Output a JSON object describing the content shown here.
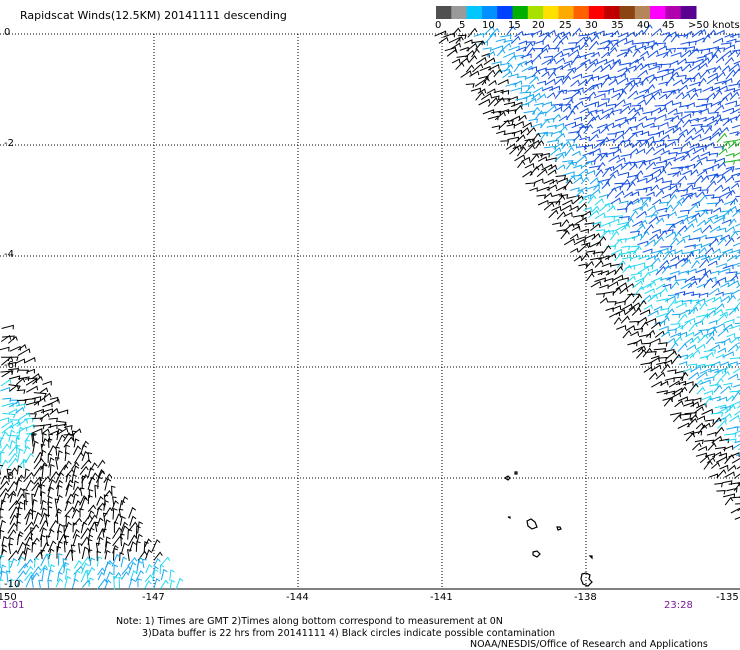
{
  "title": "Rapidscat Winds(12.5KM) 20141111 descending",
  "legend": {
    "colors": [
      "#505050",
      "#9a9a9a",
      "#00c8ff",
      "#0090ff",
      "#0040ff",
      "#00b000",
      "#a8e000",
      "#ffe000",
      "#ffaa00",
      "#ff6000",
      "#ff0000",
      "#c00000",
      "#8b4513",
      "#b5865a",
      "#ff00ff",
      "#b000b0",
      "#5a0090"
    ],
    "labels": [
      "0",
      "5",
      "10",
      "15",
      "20",
      "25",
      "30",
      "35",
      "40",
      "45",
      ">50 knots"
    ]
  },
  "axes": {
    "lat_labels": [
      "0",
      "-2",
      "-4",
      "-6",
      "-8",
      "-10"
    ],
    "lon_labels": [
      "-150",
      "-147",
      "-144",
      "-141",
      "-138",
      "-135"
    ]
  },
  "times": {
    "left": "1:01",
    "right": "23:28"
  },
  "notes": {
    "line1": "Note: 1) Times are GMT 2)Times along bottom correspond to measurement at 0N",
    "line2": "3)Data buffer is 22 hrs from 20141111 4) Black circles indicate possible contamination",
    "line3": "NOAA/NESDIS/Office of Research and Applications"
  },
  "wind_colors": {
    "black": "#000000",
    "light": "#22d8f0",
    "mid": "#1aa8f0",
    "dark": "#1550e0",
    "green": "#22b422"
  }
}
